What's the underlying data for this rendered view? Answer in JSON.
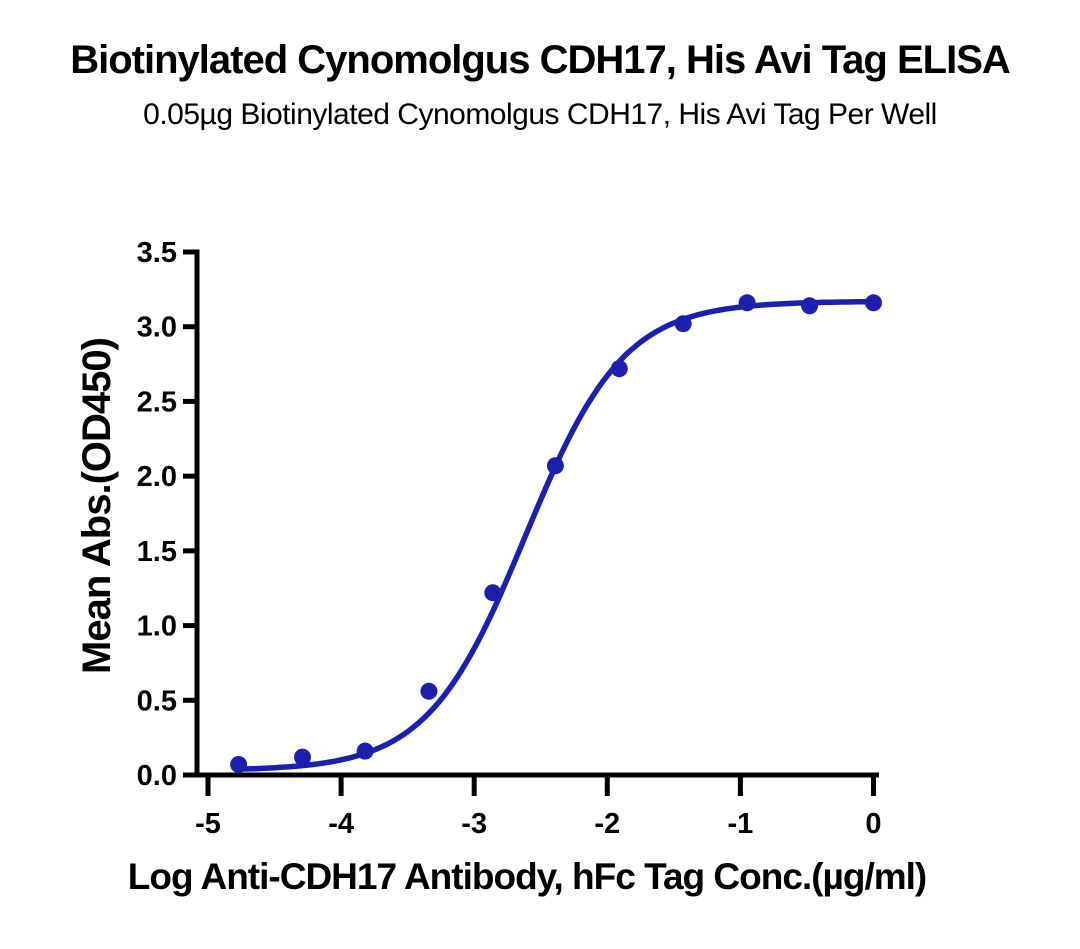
{
  "chart_data": {
    "type": "scatter",
    "title": "Biotinylated Cynomolgus CDH17, His Avi Tag ELISA",
    "subtitle": "0.05µg Biotinylated Cynomolgus CDH17, His Avi Tag Per Well",
    "xlabel": "Log Anti-CDH17 Antibody, hFc Tag Conc.(µg/ml)",
    "ylabel": "Mean Abs.(OD450)",
    "xlim": [
      -5.1,
      0.05
    ],
    "ylim": [
      0,
      3.5
    ],
    "grid": false,
    "legend": "none",
    "x_ticks": [
      {
        "value": -5,
        "label": "-5"
      },
      {
        "value": -4,
        "label": "-4"
      },
      {
        "value": -3,
        "label": "-3"
      },
      {
        "value": -2,
        "label": "-2"
      },
      {
        "value": -1,
        "label": "-1"
      },
      {
        "value": 0,
        "label": "0"
      }
    ],
    "y_ticks": [
      {
        "value": 0,
        "label": "0.0"
      },
      {
        "value": 0.5,
        "label": "0.5"
      },
      {
        "value": 1,
        "label": "1.0"
      },
      {
        "value": 1.5,
        "label": "1.5"
      },
      {
        "value": 2,
        "label": "2.0"
      },
      {
        "value": 2.5,
        "label": "2.5"
      },
      {
        "value": 3,
        "label": "3.0"
      },
      {
        "value": 3.5,
        "label": "3.5"
      }
    ],
    "series": [
      {
        "name": "Anti-CDH17 Antibody, hFc Tag",
        "color": "#1f1faf",
        "marker": "circle",
        "x": [
          -4.77,
          -4.29,
          -3.82,
          -3.34,
          -2.86,
          -2.39,
          -1.91,
          -1.43,
          -0.95,
          -0.48,
          0
        ],
        "y": [
          0.07,
          0.12,
          0.16,
          0.56,
          1.22,
          2.07,
          2.72,
          3.02,
          3.16,
          3.14,
          3.16
        ]
      }
    ],
    "fit_curve": {
      "model": "4PL",
      "bottom": 0.03,
      "top": 3.17,
      "log_ec50": -2.615,
      "hill_slope": 1.18
    }
  },
  "colors": {
    "accent": "#1f1faf",
    "axis": "#000000",
    "background": "#ffffff"
  }
}
